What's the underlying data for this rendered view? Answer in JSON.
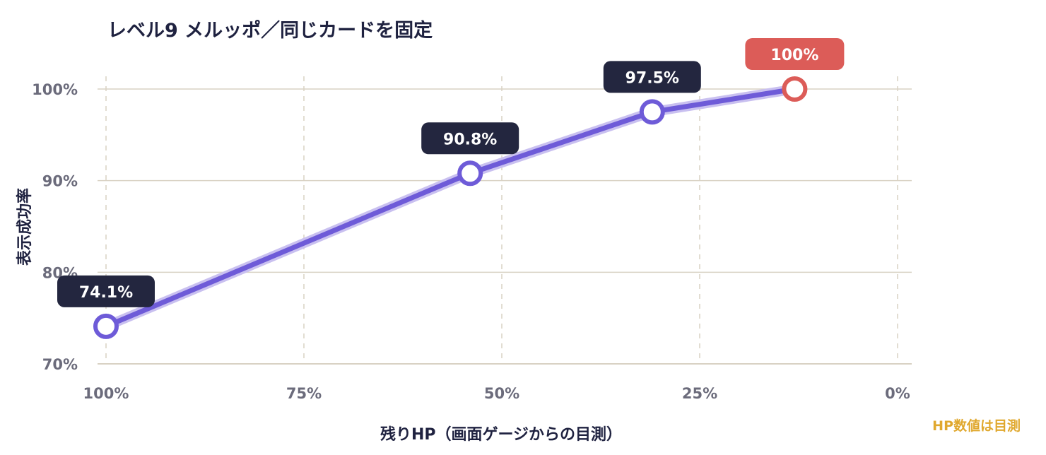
{
  "chart_data": {
    "type": "line",
    "title": "レベル9 メルッポ／同じカードを固定",
    "xlabel": "残りHP（画面ゲージからの目測）",
    "ylabel": "表示成功率",
    "note": "HP数値は目測",
    "x_axis": {
      "reversed": true,
      "range": [
        100,
        0
      ],
      "ticks": [
        100,
        75,
        50,
        25,
        0
      ],
      "tick_labels": [
        "100%",
        "75%",
        "50%",
        "25%",
        "0%"
      ]
    },
    "y_axis": {
      "range": [
        70,
        100
      ],
      "ticks": [
        100,
        90,
        80,
        70
      ],
      "tick_labels": [
        "100%",
        "90%",
        "80%",
        "70%"
      ]
    },
    "grid": true,
    "points": [
      {
        "x": 100,
        "y": 74.1,
        "label": "74.1%",
        "highlight": false
      },
      {
        "x": 54,
        "y": 90.8,
        "label": "90.8%",
        "highlight": false
      },
      {
        "x": 31,
        "y": 97.5,
        "label": "97.5%",
        "highlight": false
      },
      {
        "x": 13,
        "y": 100,
        "label": "100%",
        "highlight": true
      }
    ],
    "colors": {
      "line": "#6e5bd8",
      "line_glow": "#c9c0f0",
      "label_bg": "#23263f",
      "highlight": "#dc5c58",
      "grid": "#d9d2c4",
      "tick_text": "#6b6b7b",
      "note": "#e0a82e"
    }
  }
}
